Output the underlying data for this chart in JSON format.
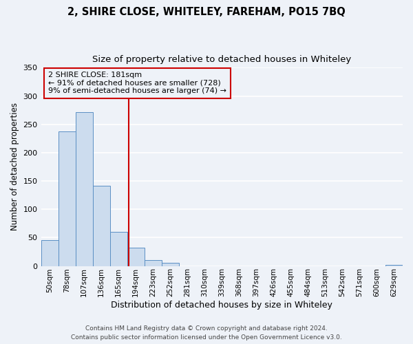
{
  "title": "2, SHIRE CLOSE, WHITELEY, FAREHAM, PO15 7BQ",
  "subtitle": "Size of property relative to detached houses in Whiteley",
  "xlabel": "Distribution of detached houses by size in Whiteley",
  "ylabel": "Number of detached properties",
  "bar_labels": [
    "50sqm",
    "78sqm",
    "107sqm",
    "136sqm",
    "165sqm",
    "194sqm",
    "223sqm",
    "252sqm",
    "281sqm",
    "310sqm",
    "339sqm",
    "368sqm",
    "397sqm",
    "426sqm",
    "455sqm",
    "484sqm",
    "513sqm",
    "542sqm",
    "571sqm",
    "600sqm",
    "629sqm"
  ],
  "bar_values": [
    46,
    237,
    272,
    141,
    60,
    32,
    10,
    5,
    0,
    0,
    0,
    0,
    0,
    0,
    0,
    0,
    0,
    0,
    0,
    0,
    2
  ],
  "bar_color": "#ccdcee",
  "bar_edge_color": "#5a8fc4",
  "vline_x": 4.58,
  "vline_color": "#cc0000",
  "annotation_text": "2 SHIRE CLOSE: 181sqm\n← 91% of detached houses are smaller (728)\n9% of semi-detached houses are larger (74) →",
  "annotation_box_edge": "#cc0000",
  "annotation_box_facecolor": "#eef2f8",
  "ylim": [
    0,
    350
  ],
  "yticks": [
    0,
    50,
    100,
    150,
    200,
    250,
    300,
    350
  ],
  "footer_line1": "Contains HM Land Registry data © Crown copyright and database right 2024.",
  "footer_line2": "Contains public sector information licensed under the Open Government Licence v3.0.",
  "background_color": "#eef2f8",
  "grid_color": "#ffffff",
  "title_fontsize": 10.5,
  "subtitle_fontsize": 9.5,
  "xlabel_fontsize": 9,
  "ylabel_fontsize": 8.5,
  "annotation_fontsize": 8,
  "tick_fontsize": 7.5,
  "footer_fontsize": 6.5
}
